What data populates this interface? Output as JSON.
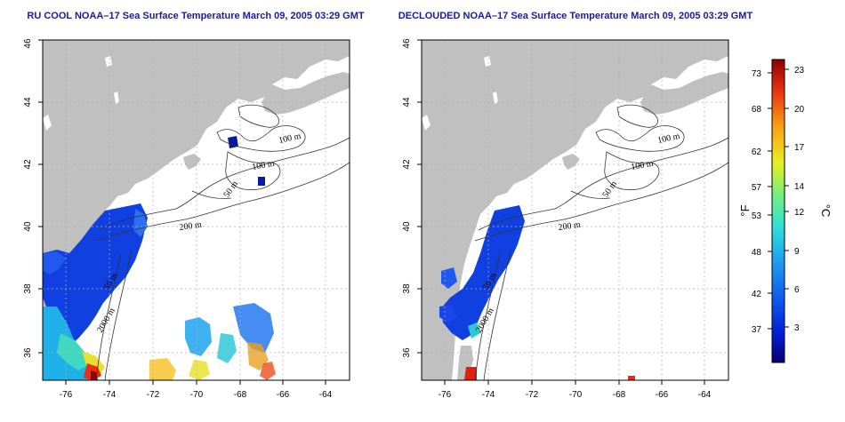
{
  "panels": [
    {
      "title": "RU COOL NOAA–17 Sea Surface Temperature March 09, 2005 03:29 GMT",
      "x_ticks": [
        "-76",
        "-74",
        "-72",
        "-70",
        "-68",
        "-66",
        "-64"
      ],
      "y_ticks": [
        "36",
        "38",
        "40",
        "42",
        "44",
        "46"
      ],
      "contour_labels": [
        "100 m",
        "100 m",
        "50 m",
        "200 m",
        "50 m",
        "2000 m"
      ]
    },
    {
      "title": "DECLOUDED NOAA–17 Sea Surface Temperature March 09, 2005 03:29 GMT",
      "x_ticks": [
        "-76",
        "-74",
        "-72",
        "-70",
        "-68",
        "-66",
        "-64"
      ],
      "y_ticks": [
        "36",
        "38",
        "40",
        "42",
        "44",
        "46"
      ],
      "contour_labels": [
        "100 m",
        "100 m",
        "50 m",
        "200 m",
        "50 m",
        "2000 m"
      ]
    }
  ],
  "colorbar": {
    "fahrenheit_ticks": [
      "73",
      "68",
      "62",
      "57",
      "53",
      "48",
      "42",
      "37"
    ],
    "celsius_ticks": [
      "23",
      "20",
      "17",
      "14",
      "12",
      "9",
      "6",
      "3"
    ],
    "fahrenheit_unit": "°F",
    "celsius_unit": "°C",
    "colors": [
      "#08006b",
      "#0020d8",
      "#1060f0",
      "#20a8f0",
      "#30e0d8",
      "#70f080",
      "#e8f020",
      "#f8a010",
      "#e83010",
      "#900000"
    ]
  },
  "colors": {
    "land": "#c0c0c0",
    "ocean": "#ffffff",
    "grid": "#b0b0b0",
    "title": "#1a1aa0"
  }
}
